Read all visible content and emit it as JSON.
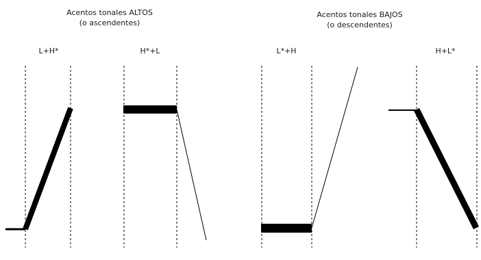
{
  "groups": {
    "high": {
      "title_line1": "Acentos tonales ALTOS",
      "title_line2": "(o ascendentes)"
    },
    "low": {
      "title_line1": "Acentos tonales BAJOS",
      "title_line2": "(o descendentes)"
    }
  },
  "accents": [
    {
      "label": "L+H*"
    },
    {
      "label": "H*+L"
    },
    {
      "label": "L*+H"
    },
    {
      "label": "H+L*"
    }
  ],
  "colors": {
    "ink": "#000000",
    "guide": "#000000"
  }
}
